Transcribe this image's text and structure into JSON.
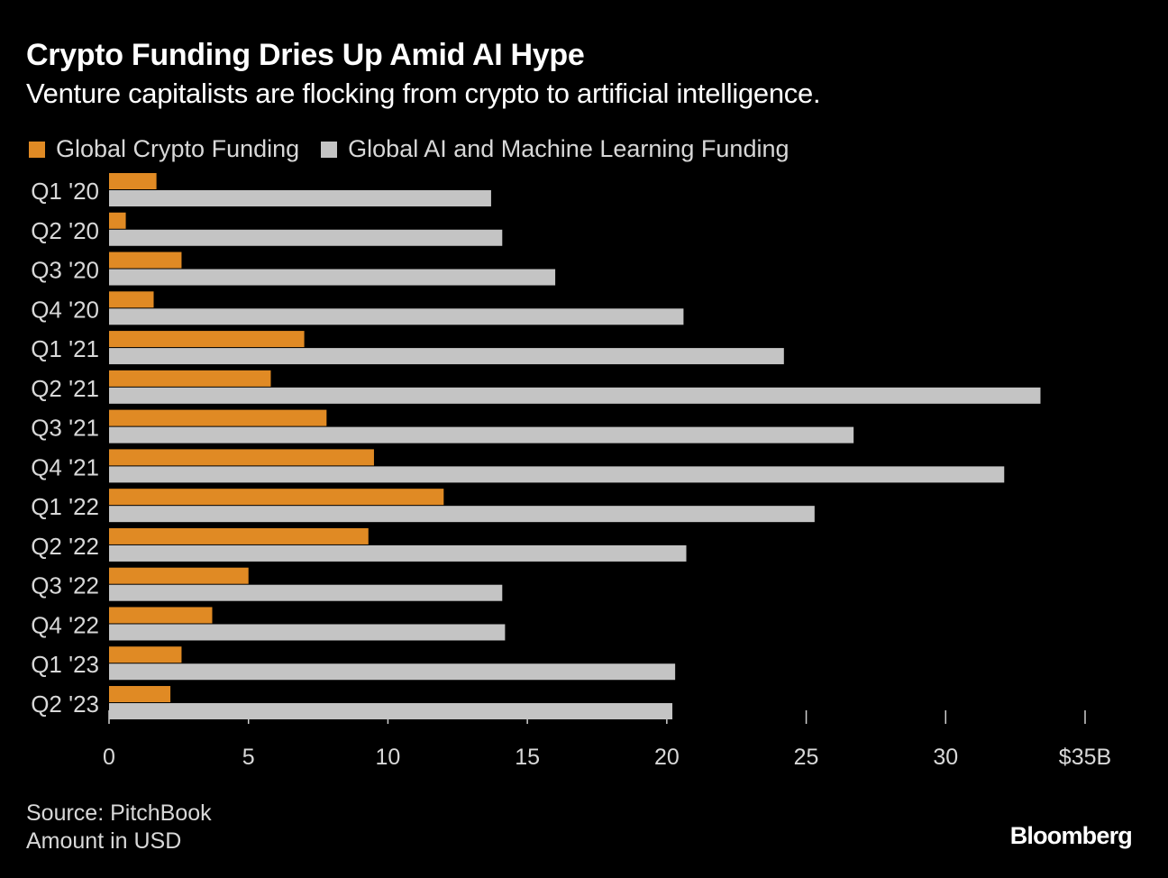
{
  "chart_data": {
    "type": "bar",
    "orientation": "horizontal",
    "title": "Crypto Funding Dries Up Amid AI Hype",
    "subtitle": "Venture capitalists are flocking from crypto to artificial intelligence.",
    "categories": [
      "Q1 '20",
      "Q2 '20",
      "Q3 '20",
      "Q4 '20",
      "Q1 '21",
      "Q2 '21",
      "Q3 '21",
      "Q4 '21",
      "Q1 '22",
      "Q2 '22",
      "Q3 '22",
      "Q4 '22",
      "Q1 '23",
      "Q2 '23"
    ],
    "series": [
      {
        "name": "Global Crypto Funding",
        "color": "#e08a24",
        "values": [
          1.7,
          0.6,
          2.6,
          1.6,
          7.0,
          5.8,
          7.8,
          9.5,
          12.0,
          9.3,
          5.0,
          3.7,
          2.6,
          2.2
        ]
      },
      {
        "name": "Global AI and Machine Learning Funding",
        "color": "#c4c4c4",
        "values": [
          13.7,
          14.1,
          16.0,
          20.6,
          24.2,
          33.4,
          26.7,
          32.1,
          25.3,
          20.7,
          14.1,
          14.2,
          20.3,
          20.2
        ]
      }
    ],
    "xlim": [
      0,
      35
    ],
    "x_ticks": [
      0,
      5,
      10,
      15,
      20,
      25,
      30,
      35
    ],
    "x_tick_labels": [
      "0",
      "5",
      "10",
      "15",
      "20",
      "25",
      "30",
      "$35B"
    ],
    "legend": "top-left",
    "grid": false
  },
  "footer": {
    "source": "Source: PitchBook",
    "note": "Amount in USD",
    "logo": "Bloomberg"
  }
}
